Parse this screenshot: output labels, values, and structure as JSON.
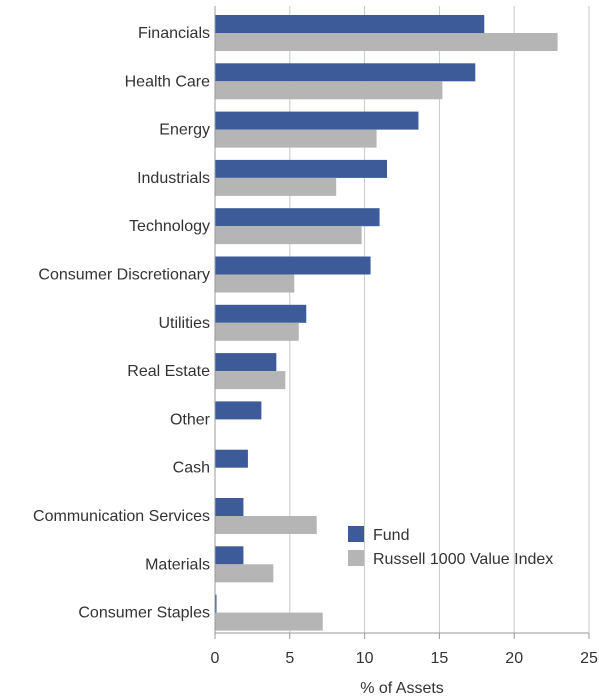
{
  "chart_data": {
    "type": "bar",
    "orientation": "horizontal",
    "categories": [
      "Financials",
      "Health Care",
      "Energy",
      "Industrials",
      "Technology",
      "Consumer Discretionary",
      "Utilities",
      "Real Estate",
      "Other",
      "Cash",
      "Communication Services",
      "Materials",
      "Consumer Staples"
    ],
    "series": [
      {
        "name": "Fund",
        "color": "#3d5a99",
        "values": [
          18.0,
          17.4,
          13.6,
          11.5,
          11.0,
          10.4,
          6.1,
          4.1,
          3.1,
          2.2,
          1.9,
          1.9,
          0.1
        ]
      },
      {
        "name": "Russell 1000 Value Index",
        "color": "#b5b5b5",
        "values": [
          22.9,
          15.2,
          10.8,
          8.1,
          9.8,
          5.3,
          5.6,
          4.7,
          0.0,
          0.0,
          6.8,
          3.9,
          7.2
        ]
      }
    ],
    "xlabel": "% of Assets",
    "xlim": [
      0,
      25
    ],
    "xticks": [
      0,
      5,
      10,
      15,
      20,
      25
    ],
    "grid": true,
    "legend_position": "bottom-right"
  }
}
